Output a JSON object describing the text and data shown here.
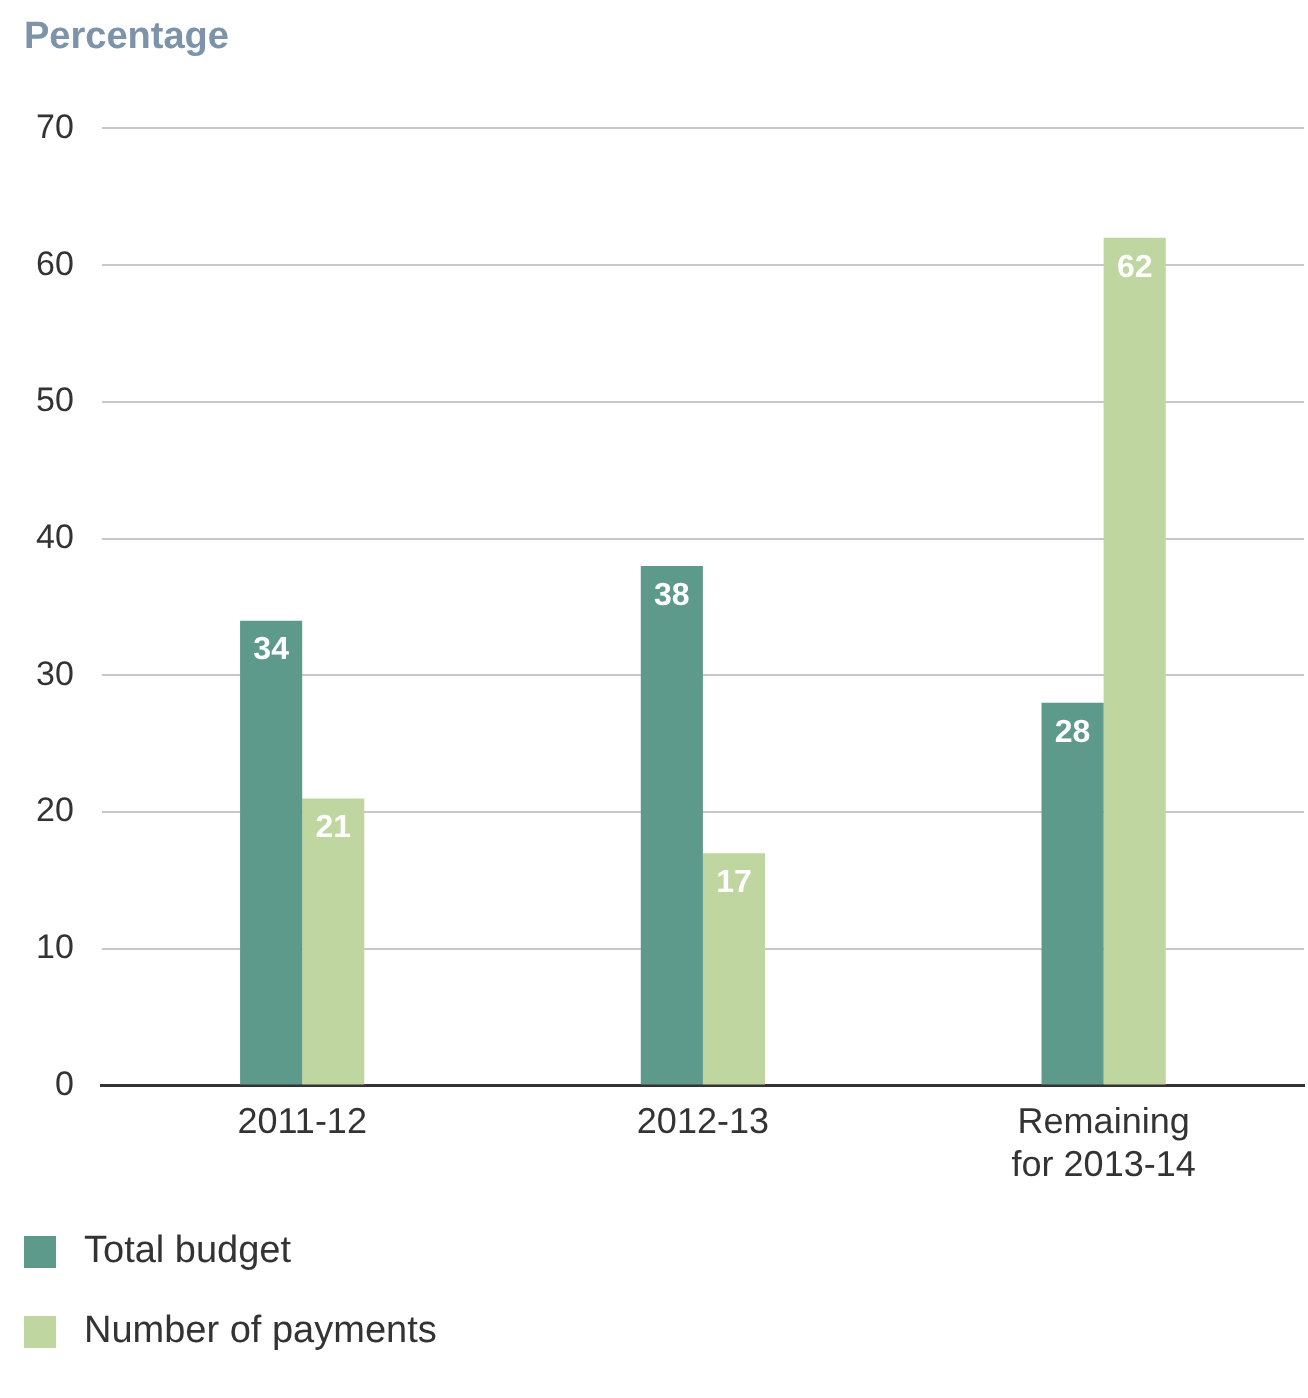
{
  "chart_data": {
    "type": "bar",
    "ylabel": "Percentage",
    "categories": [
      "2011-12",
      "2012-13",
      "Remaining for 2013-14"
    ],
    "series": [
      {
        "name": "Total budget",
        "color": "#5e9a8c",
        "values": [
          34,
          38,
          28
        ]
      },
      {
        "name": "Number of payments",
        "color": "#bfd6a0",
        "values": [
          21,
          17,
          62
        ]
      }
    ],
    "ylim": [
      0,
      70
    ],
    "yticks": [
      0,
      10,
      20,
      30,
      40,
      50,
      60,
      70
    ],
    "grid": "y",
    "legend": "bottom",
    "data_labels": true
  }
}
